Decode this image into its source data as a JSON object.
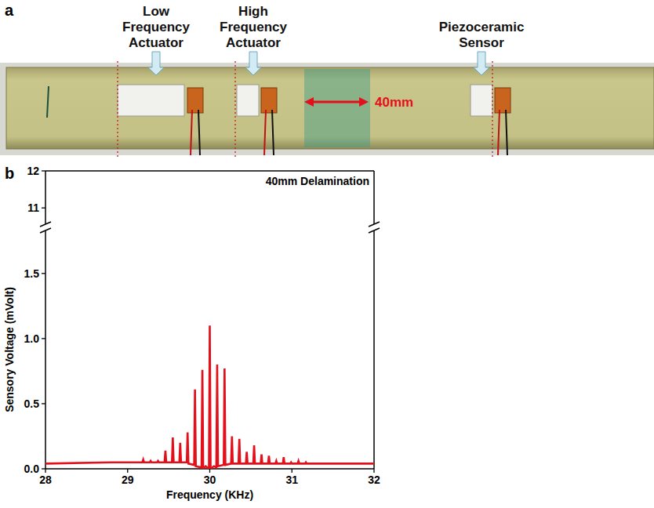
{
  "figure_a": {
    "letter": "a",
    "labels": [
      "Low Frequency Actuator",
      "High Frequency Actuator",
      "Piezoceramic Sensor"
    ],
    "dimension": "40mm"
  },
  "chart_data": {
    "letter": "b",
    "type": "line",
    "annotation": "40mm Delamination",
    "xlabel": "Frequency (KHz)",
    "ylabel": "Sensory Voltage (mVolt)",
    "xlim": [
      28,
      32
    ],
    "xticks": [
      28,
      29,
      30,
      31,
      32
    ],
    "ylim": [
      0,
      12
    ],
    "ybreak": [
      1.83,
      10.56
    ],
    "yticks": [
      {
        "value": 0,
        "label": "0.0"
      },
      {
        "value": 0.5,
        "label": "0.5"
      },
      {
        "value": 1,
        "label": "1.0"
      },
      {
        "value": 1.5,
        "label": "1.5"
      },
      11,
      12
    ],
    "grid": false,
    "series": [
      {
        "color": "#e3101c",
        "x": [
          28,
          28.8,
          29.18,
          29.19,
          29.2,
          29.27,
          29.28,
          29.29,
          29.36,
          29.37,
          29.38,
          29.45,
          29.46,
          29.47,
          29.54,
          29.55,
          29.56,
          29.63,
          29.64,
          29.65,
          29.72,
          29.73,
          29.74,
          29.81,
          29.82,
          29.83,
          29.9,
          29.91,
          29.92,
          29.95,
          29.99,
          30.0,
          30.01,
          30.05,
          30.08,
          30.09,
          30.1,
          30.17,
          30.18,
          30.19,
          30.26,
          30.27,
          30.28,
          30.35,
          30.36,
          30.37,
          30.44,
          30.45,
          30.46,
          30.53,
          30.54,
          30.55,
          30.62,
          30.63,
          30.64,
          30.71,
          30.72,
          30.73,
          30.8,
          30.81,
          30.82,
          30.89,
          30.9,
          30.91,
          30.98,
          30.99,
          31.0,
          31.07,
          31.08,
          31.09,
          31.16,
          31.17,
          31.18,
          31.6,
          32
        ],
        "values": [
          0.04,
          0.05,
          0.05,
          0.07,
          0.05,
          0.05,
          0.06,
          0.05,
          0.05,
          0.06,
          0.05,
          0.05,
          0.14,
          0.05,
          0.05,
          0.24,
          0.05,
          0.05,
          0.2,
          0.05,
          0.05,
          0.28,
          0.04,
          0.03,
          0.61,
          0.02,
          0.01,
          0.76,
          0.0,
          0.02,
          0.0,
          1.1,
          0.0,
          0.02,
          0.01,
          0.8,
          0.02,
          0.03,
          0.77,
          0.03,
          0.04,
          0.25,
          0.04,
          0.04,
          0.23,
          0.04,
          0.04,
          0.13,
          0.04,
          0.04,
          0.18,
          0.04,
          0.04,
          0.11,
          0.04,
          0.04,
          0.1,
          0.04,
          0.04,
          0.06,
          0.04,
          0.04,
          0.09,
          0.04,
          0.04,
          0.05,
          0.04,
          0.04,
          0.06,
          0.04,
          0.04,
          0.05,
          0.04,
          0.04,
          0.04
        ]
      }
    ]
  }
}
